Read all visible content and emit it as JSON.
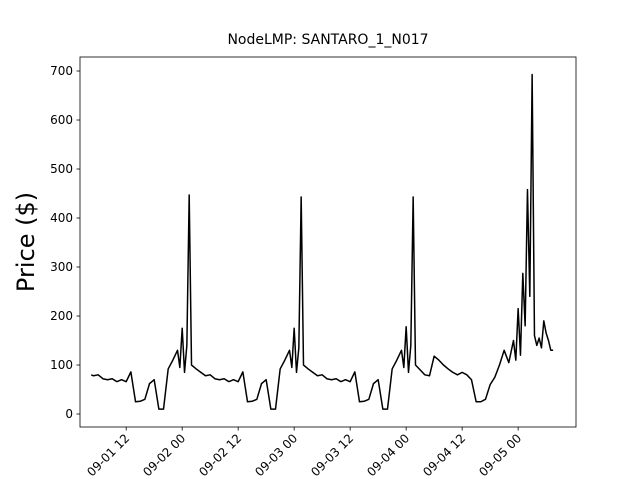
{
  "chart_data": {
    "type": "line",
    "title": "NodeLMP: SANTARO_1_N017",
    "y_label": "Price ($)",
    "color": "#000000",
    "xlim": [
      2.1,
      108.4
    ],
    "ylim": [
      -26.5,
      728.6
    ],
    "xticks": [
      {
        "value": 12,
        "label": "09-01 12"
      },
      {
        "value": 24,
        "label": "09-02 00"
      },
      {
        "value": 36,
        "label": "09-02 12"
      },
      {
        "value": 48,
        "label": "09-03 00"
      },
      {
        "value": 60,
        "label": "09-03 12"
      },
      {
        "value": 72,
        "label": "09-04 00"
      },
      {
        "value": 84,
        "label": "09-04 12"
      },
      {
        "value": 96,
        "label": "09-05 00"
      }
    ],
    "yticks": [
      0,
      100,
      200,
      300,
      400,
      500,
      600,
      700
    ],
    "x": [
      4.5,
      5,
      6,
      7,
      8,
      9,
      10,
      11,
      12,
      13,
      14,
      15,
      16,
      17,
      18,
      19,
      20,
      21,
      22,
      23,
      23.5,
      24,
      24.5,
      25,
      25.5,
      26,
      27,
      28,
      29,
      30,
      31,
      32,
      33,
      34,
      35,
      36,
      37,
      38,
      39,
      40,
      41,
      42,
      43,
      44,
      45,
      46,
      47,
      47.5,
      48,
      48.5,
      49,
      49.5,
      50,
      51,
      52,
      53,
      54,
      55,
      56,
      57,
      58,
      59,
      60,
      61,
      62,
      63,
      64,
      65,
      66,
      67,
      68,
      69,
      70,
      71,
      71.5,
      72,
      72.5,
      73,
      73.5,
      74,
      75,
      76,
      77,
      78,
      79,
      80,
      81,
      82,
      83,
      84,
      85,
      86,
      87,
      88,
      89,
      90,
      91,
      92,
      93,
      94,
      95,
      95.5,
      96,
      96.5,
      97,
      97.5,
      98,
      98.5,
      99,
      99.5,
      100,
      100.5,
      101,
      101.5,
      102,
      102.5,
      103,
      103.5
    ],
    "values": [
      80,
      78,
      80,
      72,
      70,
      72,
      66,
      70,
      66,
      86,
      25,
      26,
      30,
      62,
      70,
      10,
      10,
      92,
      110,
      130,
      95,
      175,
      85,
      140,
      447,
      100,
      92,
      85,
      78,
      80,
      72,
      70,
      72,
      66,
      70,
      66,
      86,
      25,
      26,
      30,
      62,
      70,
      10,
      10,
      92,
      110,
      130,
      95,
      175,
      85,
      135,
      443,
      100,
      92,
      85,
      78,
      80,
      72,
      70,
      72,
      66,
      70,
      66,
      86,
      25,
      26,
      30,
      62,
      70,
      10,
      10,
      92,
      110,
      130,
      95,
      178,
      85,
      140,
      443,
      100,
      90,
      80,
      78,
      118,
      110,
      100,
      92,
      85,
      80,
      85,
      80,
      70,
      25,
      25,
      30,
      60,
      75,
      100,
      130,
      105,
      150,
      110,
      215,
      120,
      287,
      180,
      458,
      240,
      693,
      160,
      140,
      155,
      135,
      190,
      165,
      150,
      130,
      130
    ]
  }
}
